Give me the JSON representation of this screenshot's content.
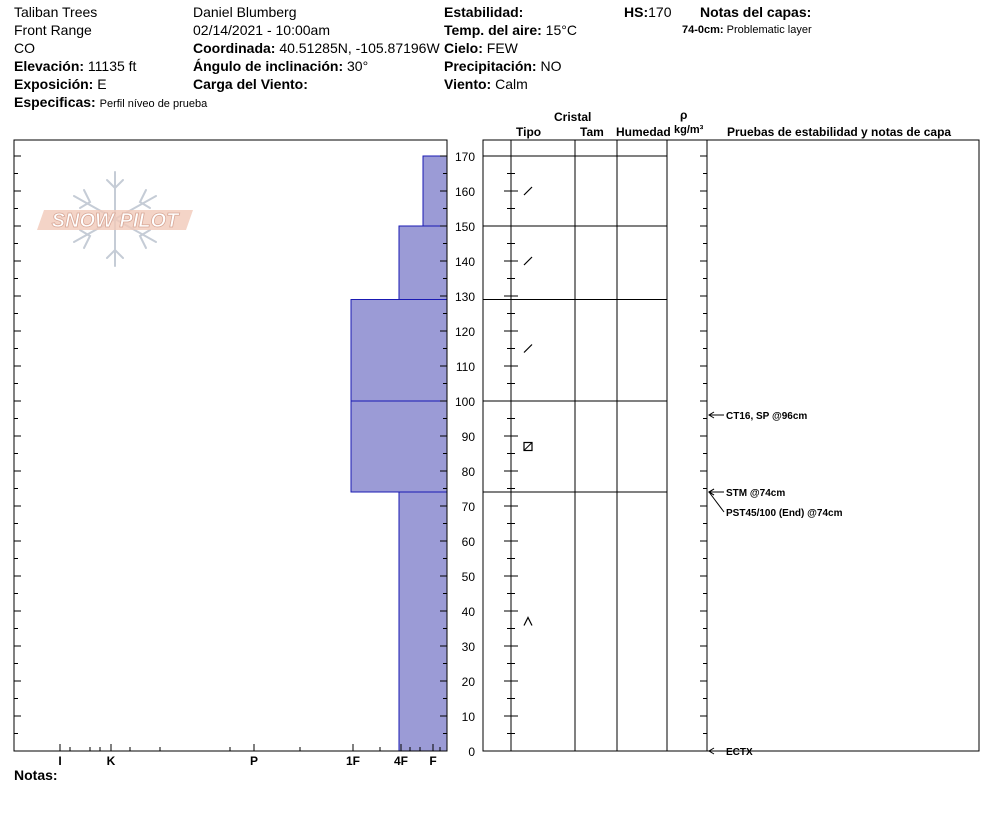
{
  "header": {
    "location": "Taliban Trees",
    "range": "Front Range",
    "state": "CO",
    "elevation_label": "Elevación:",
    "elevation_value": "11135 ft",
    "aspect_label": "Exposición:",
    "aspect_value": "E",
    "specifics_label": "Especificas:",
    "specifics_value": "Perfil níveo de prueba",
    "observer": "Daniel Blumberg",
    "datetime": "02/14/2021 - 10:00am",
    "coord_label": "Coordinada:",
    "coord_value": "40.51285N, -105.87196W",
    "slope_label": "Ángulo de inclinación:",
    "slope_value": "30°",
    "wind_load_label": "Carga del Viento:",
    "wind_load_value": "",
    "stability_label": "Estabilidad:",
    "stability_value": "",
    "air_temp_label": "Temp. del aire:",
    "air_temp_value": "15°C",
    "sky_label": "Cielo:",
    "sky_value": "FEW",
    "precip_label": "Precipitación:",
    "precip_value": "NO",
    "wind_label": "Viento:",
    "wind_value": "Calm",
    "hs_label": "HS:",
    "hs_value": "170",
    "layer_notes_label": "Notas del capas:",
    "layer_notes": [
      {
        "range": "74-0cm:",
        "text": "Problematic layer"
      }
    ]
  },
  "logo_text": "SNOW PILOT",
  "columns": {
    "crystal": "Cristal",
    "type": "Tipo",
    "size": "Tam",
    "moisture": "Humedad",
    "rho": "ρ",
    "density_unit": "kg/m³",
    "tests": "Pruebas de estabilidad y notas de capa"
  },
  "notes_label": "Notas:",
  "colors": {
    "fill": "#9b9bd6",
    "layer_line": "#1a1ab3",
    "axis": "#000000"
  },
  "chart_data": {
    "type": "snow-profile",
    "y_axis": {
      "min": 0,
      "max": 170,
      "step": 10,
      "unit": "cm"
    },
    "hardness_scale": [
      "I",
      "K",
      "P",
      "1F",
      "4F",
      "F"
    ],
    "hardness_layers": [
      {
        "top": 170,
        "bottom": 150,
        "hardness": 0.25
      },
      {
        "top": 150,
        "bottom": 129,
        "hardness": 0.5
      },
      {
        "top": 129,
        "bottom": 100,
        "hardness": 1.0
      },
      {
        "top": 100,
        "bottom": 74,
        "hardness": 1.0
      },
      {
        "top": 74,
        "bottom": 0,
        "hardness": 0.5
      }
    ],
    "layer_boundaries": [
      170,
      150,
      129,
      100,
      74
    ],
    "crystals": [
      {
        "height": 160,
        "symbol": "/"
      },
      {
        "height": 140,
        "symbol": "/"
      },
      {
        "height": 115,
        "symbol": "/"
      },
      {
        "height": 87,
        "symbol": "⊠"
      },
      {
        "height": 37,
        "symbol": "^"
      }
    ],
    "tests": [
      {
        "height": 96,
        "label": "CT16, SP @96cm"
      },
      {
        "height": 74,
        "label": "STM @74cm"
      },
      {
        "height": 74,
        "label": "PST45/100 (End) @74cm"
      },
      {
        "height": 0,
        "label": "ECTX"
      }
    ]
  }
}
